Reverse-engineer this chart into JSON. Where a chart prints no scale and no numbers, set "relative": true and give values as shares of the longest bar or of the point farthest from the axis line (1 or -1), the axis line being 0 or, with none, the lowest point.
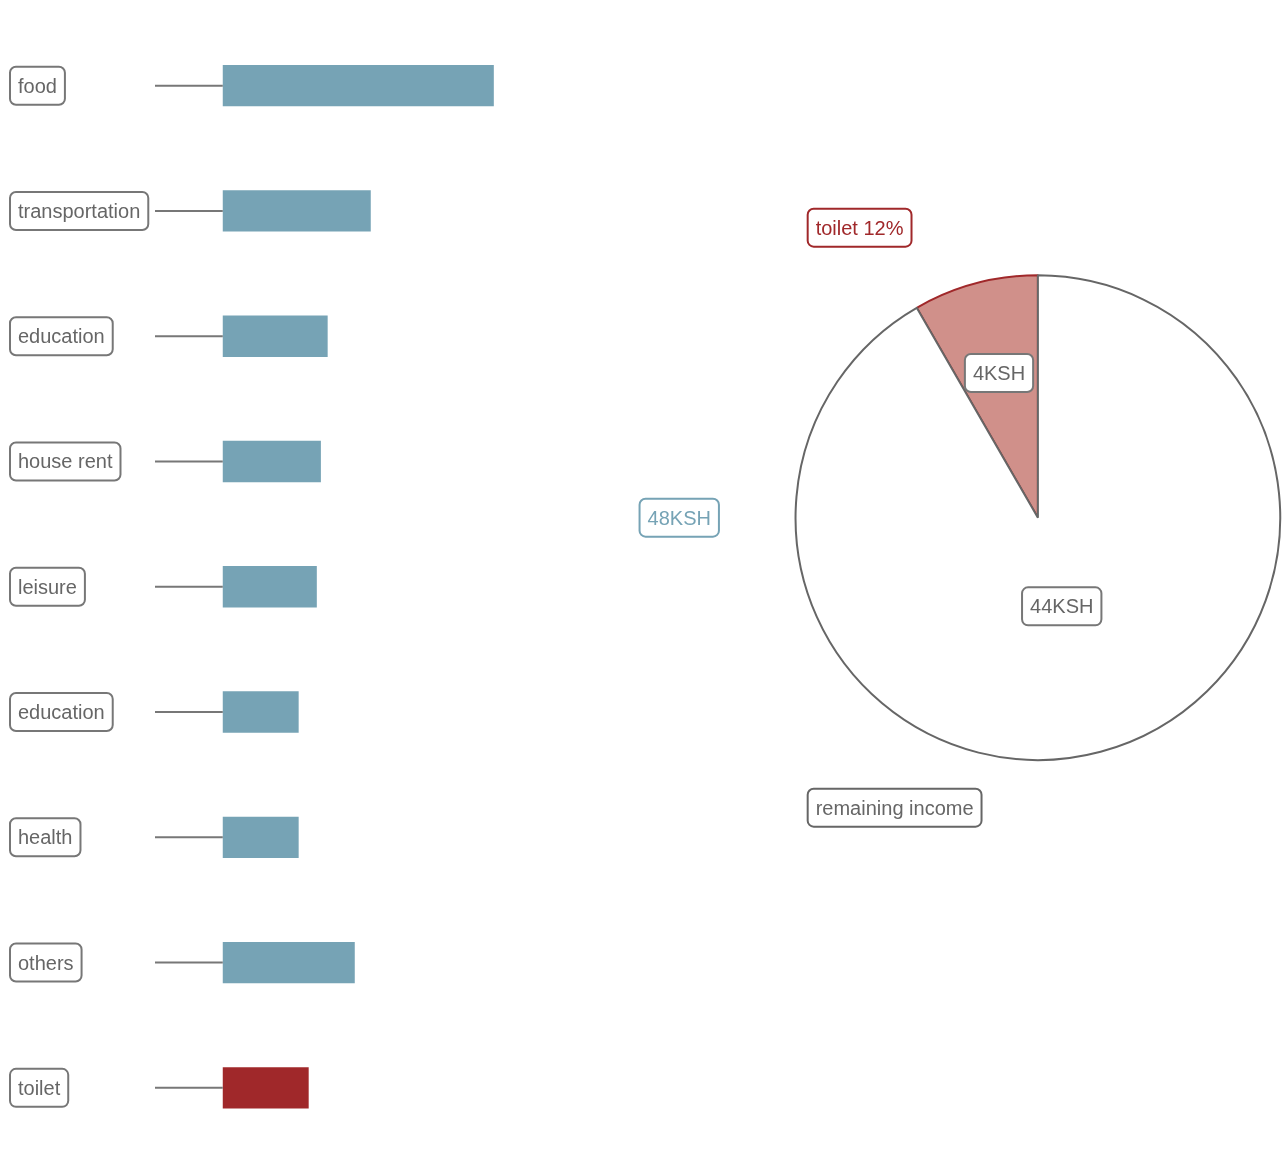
{
  "chart_data": [
    {
      "type": "bar",
      "orientation": "horizontal",
      "relative": true,
      "categories": [
        "food",
        "transportation",
        "education",
        "house rent",
        "leisure",
        "education",
        "health",
        "others",
        "toilet"
      ],
      "values": [
        1,
        0.546,
        0.387,
        0.362,
        0.347,
        0.28,
        0.28,
        0.487,
        0.317
      ],
      "colors": [
        "#76a3b5",
        "#76a3b5",
        "#76a3b5",
        "#76a3b5",
        "#76a3b5",
        "#76a3b5",
        "#76a3b5",
        "#76a3b5",
        "#a0282a"
      ]
    },
    {
      "type": "pie",
      "categories": [
        "toilet 12%",
        "remaining income"
      ],
      "values": [
        4,
        44
      ],
      "colors": [
        "#d0908a",
        "#ffffff"
      ],
      "value_labels": [
        "4KSH",
        "44KSH"
      ],
      "annotations": [
        "48KSH"
      ]
    }
  ]
}
